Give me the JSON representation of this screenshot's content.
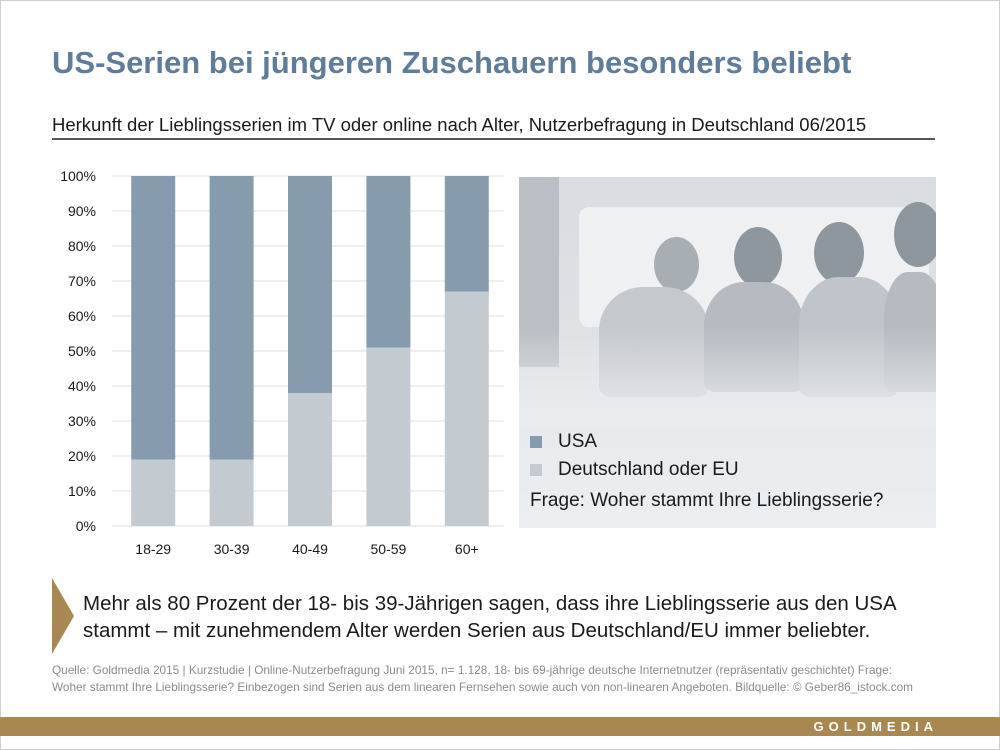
{
  "header": {
    "title": "US-Serien bei jüngeren Zuschauern besonders beliebt",
    "subtitle": "Herkunft der Lieblingsserien im TV oder online nach Alter, Nutzerbefragung in Deutschland 06/2015"
  },
  "chart_data": {
    "type": "bar",
    "stacked": true,
    "title": "Herkunft der Lieblingsserien im TV oder online nach Alter, Nutzerbefragung in Deutschland 06/2015",
    "xlabel": "",
    "ylabel": "",
    "categories": [
      "18-29",
      "30-39",
      "40-49",
      "50-59",
      "60+"
    ],
    "series": [
      {
        "name": "Deutschland oder EU",
        "color": "#c3cbd0",
        "values": [
          19,
          19,
          38,
          51,
          67
        ]
      },
      {
        "name": "USA",
        "color": "#869cae",
        "values": [
          81,
          81,
          62,
          49,
          33
        ]
      }
    ],
    "yticks": [
      "0%",
      "10%",
      "20%",
      "30%",
      "40%",
      "50%",
      "60%",
      "70%",
      "80%",
      "90%",
      "100%"
    ],
    "ylim": [
      0,
      100
    ],
    "grid": true,
    "legend": "right"
  },
  "legend": {
    "items": [
      {
        "label": "USA",
        "color": "#869cae"
      },
      {
        "label": "Deutschland oder EU",
        "color": "#c3cbd0"
      }
    ],
    "question": "Frage: Woher stammt Ihre Lieblingsserie?"
  },
  "takeaway": {
    "line1": "Mehr als 80 Prozent der 18- bis 39-Jährigen sagen, dass ihre Lieblingsserie aus den USA",
    "line2": "stammt – mit zunehmendem Alter werden Serien aus Deutschland/EU immer beliebter."
  },
  "source": {
    "line1": "Quelle: Goldmedia 2015 | Kurzstudie | Online-Nutzerbefragung Juni 2015, n= 1.128, 18- bis 69-jährige deutsche Internetnutzer (repräsentativ geschichtet) Frage:",
    "line2": "Woher stammt Ihre Lieblingsserie? Einbezogen sind Serien aus dem linearen Fernsehen sowie auch von non-linearen Angeboten. Bildquelle: © Geber86_istock.com"
  },
  "footer": {
    "brand": "GOLDMEDIA",
    "color": "#a98750"
  },
  "photo": {
    "description": "group-of-friends-watching-tv-photo"
  }
}
